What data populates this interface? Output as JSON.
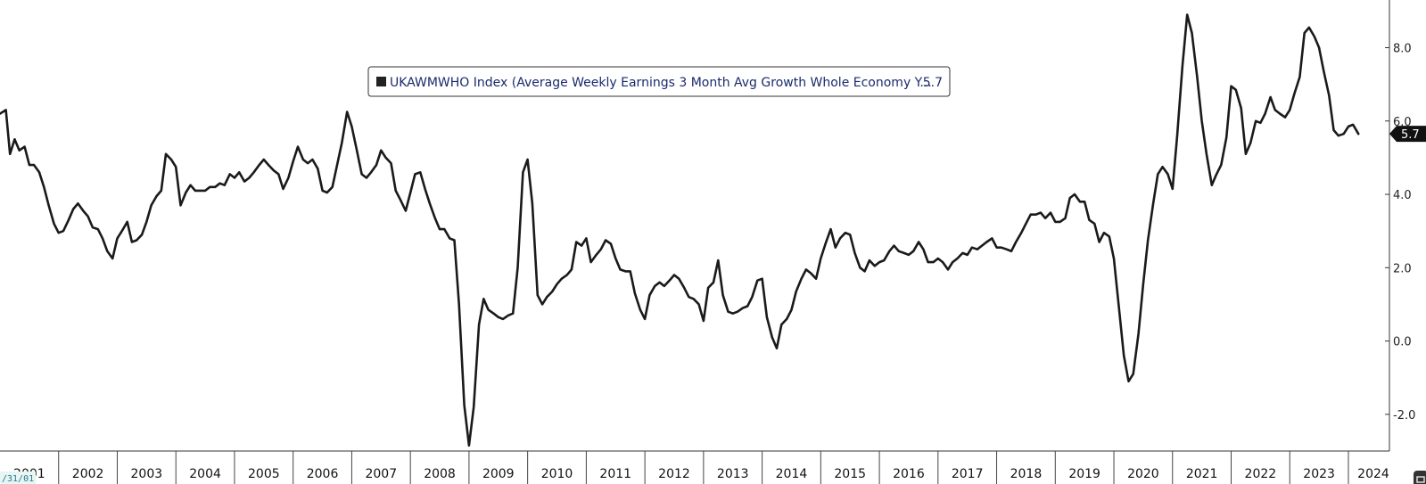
{
  "chart_data": {
    "type": "line",
    "legend": {
      "label": "UKAWMWHO Index (Average Weekly Earnings 3 Month Avg Growth Whole Economy Y...",
      "value": "5.7",
      "swatch_color": "#222222"
    },
    "last_value_label": "5.7",
    "corner_label": "/31/01",
    "y_axis": {
      "position": "right",
      "ylim": [
        -3.0,
        9.3
      ],
      "ticks": [
        {
          "value": -2.0,
          "label": "-2.0"
        },
        {
          "value": 0.0,
          "label": "0.0"
        },
        {
          "value": 2.0,
          "label": "2.0"
        },
        {
          "value": 4.0,
          "label": "4.0"
        },
        {
          "value": 6.0,
          "label": "6.0"
        },
        {
          "value": 8.0,
          "label": "8.0"
        }
      ]
    },
    "x_axis": {
      "xlim": [
        2001.0,
        2024.7
      ],
      "year_labels": [
        "2001",
        "2002",
        "2003",
        "2004",
        "2005",
        "2006",
        "2007",
        "2008",
        "2009",
        "2010",
        "2011",
        "2012",
        "2013",
        "2014",
        "2015",
        "2016",
        "2017",
        "2018",
        "2019",
        "2020",
        "2021",
        "2022",
        "2023",
        "2024"
      ]
    },
    "grid": false,
    "series": [
      {
        "color": "#1a1a1a",
        "points": [
          [
            2001.0,
            6.2
          ],
          [
            2001.1,
            6.3
          ],
          [
            2001.17,
            5.1
          ],
          [
            2001.25,
            5.5
          ],
          [
            2001.33,
            5.2
          ],
          [
            2001.42,
            5.3
          ],
          [
            2001.5,
            4.8
          ],
          [
            2001.58,
            4.8
          ],
          [
            2001.67,
            4.6
          ],
          [
            2001.75,
            4.2
          ],
          [
            2001.83,
            3.7
          ],
          [
            2001.92,
            3.2
          ],
          [
            2002.0,
            2.95
          ],
          [
            2002.08,
            3.0
          ],
          [
            2002.17,
            3.3
          ],
          [
            2002.25,
            3.6
          ],
          [
            2002.33,
            3.75
          ],
          [
            2002.42,
            3.55
          ],
          [
            2002.5,
            3.4
          ],
          [
            2002.58,
            3.1
          ],
          [
            2002.67,
            3.05
          ],
          [
            2002.75,
            2.8
          ],
          [
            2002.83,
            2.45
          ],
          [
            2002.92,
            2.25
          ],
          [
            2003.0,
            2.8
          ],
          [
            2003.08,
            3.0
          ],
          [
            2003.17,
            3.25
          ],
          [
            2003.25,
            2.7
          ],
          [
            2003.33,
            2.75
          ],
          [
            2003.42,
            2.9
          ],
          [
            2003.5,
            3.25
          ],
          [
            2003.58,
            3.7
          ],
          [
            2003.67,
            3.95
          ],
          [
            2003.75,
            4.1
          ],
          [
            2003.83,
            5.1
          ],
          [
            2003.92,
            4.95
          ],
          [
            2004.0,
            4.75
          ],
          [
            2004.08,
            3.7
          ],
          [
            2004.17,
            4.05
          ],
          [
            2004.25,
            4.25
          ],
          [
            2004.33,
            4.1
          ],
          [
            2004.42,
            4.1
          ],
          [
            2004.5,
            4.1
          ],
          [
            2004.58,
            4.2
          ],
          [
            2004.67,
            4.2
          ],
          [
            2004.75,
            4.3
          ],
          [
            2004.83,
            4.25
          ],
          [
            2004.92,
            4.55
          ],
          [
            2005.0,
            4.45
          ],
          [
            2005.08,
            4.6
          ],
          [
            2005.17,
            4.35
          ],
          [
            2005.25,
            4.45
          ],
          [
            2005.33,
            4.6
          ],
          [
            2005.42,
            4.8
          ],
          [
            2005.5,
            4.95
          ],
          [
            2005.58,
            4.8
          ],
          [
            2005.67,
            4.65
          ],
          [
            2005.75,
            4.55
          ],
          [
            2005.83,
            4.15
          ],
          [
            2005.92,
            4.45
          ],
          [
            2006.0,
            4.9
          ],
          [
            2006.08,
            5.3
          ],
          [
            2006.17,
            4.95
          ],
          [
            2006.25,
            4.85
          ],
          [
            2006.33,
            4.95
          ],
          [
            2006.42,
            4.7
          ],
          [
            2006.5,
            4.1
          ],
          [
            2006.58,
            4.05
          ],
          [
            2006.67,
            4.2
          ],
          [
            2006.75,
            4.8
          ],
          [
            2006.83,
            5.4
          ],
          [
            2006.92,
            6.25
          ],
          [
            2007.0,
            5.85
          ],
          [
            2007.08,
            5.25
          ],
          [
            2007.17,
            4.55
          ],
          [
            2007.25,
            4.45
          ],
          [
            2007.33,
            4.6
          ],
          [
            2007.42,
            4.8
          ],
          [
            2007.5,
            5.2
          ],
          [
            2007.58,
            5.0
          ],
          [
            2007.67,
            4.85
          ],
          [
            2007.75,
            4.1
          ],
          [
            2007.83,
            3.85
          ],
          [
            2007.92,
            3.55
          ],
          [
            2008.0,
            4.05
          ],
          [
            2008.08,
            4.55
          ],
          [
            2008.17,
            4.6
          ],
          [
            2008.25,
            4.15
          ],
          [
            2008.33,
            3.75
          ],
          [
            2008.42,
            3.35
          ],
          [
            2008.5,
            3.05
          ],
          [
            2008.58,
            3.05
          ],
          [
            2008.67,
            2.8
          ],
          [
            2008.75,
            2.75
          ],
          [
            2008.83,
            1.0
          ],
          [
            2008.92,
            -1.75
          ],
          [
            2009.0,
            -2.85
          ],
          [
            2009.08,
            -1.8
          ],
          [
            2009.17,
            0.45
          ],
          [
            2009.25,
            1.15
          ],
          [
            2009.33,
            0.85
          ],
          [
            2009.42,
            0.75
          ],
          [
            2009.5,
            0.65
          ],
          [
            2009.58,
            0.6
          ],
          [
            2009.67,
            0.7
          ],
          [
            2009.75,
            0.75
          ],
          [
            2009.83,
            2.0
          ],
          [
            2009.92,
            4.6
          ],
          [
            2010.0,
            4.95
          ],
          [
            2010.08,
            3.75
          ],
          [
            2010.17,
            1.25
          ],
          [
            2010.25,
            1.0
          ],
          [
            2010.33,
            1.2
          ],
          [
            2010.42,
            1.35
          ],
          [
            2010.5,
            1.55
          ],
          [
            2010.58,
            1.7
          ],
          [
            2010.67,
            1.8
          ],
          [
            2010.75,
            1.95
          ],
          [
            2010.83,
            2.7
          ],
          [
            2010.92,
            2.6
          ],
          [
            2011.0,
            2.8
          ],
          [
            2011.08,
            2.15
          ],
          [
            2011.17,
            2.35
          ],
          [
            2011.25,
            2.5
          ],
          [
            2011.33,
            2.75
          ],
          [
            2011.42,
            2.65
          ],
          [
            2011.5,
            2.25
          ],
          [
            2011.58,
            1.95
          ],
          [
            2011.67,
            1.9
          ],
          [
            2011.75,
            1.9
          ],
          [
            2011.83,
            1.3
          ],
          [
            2011.92,
            0.85
          ],
          [
            2012.0,
            0.6
          ],
          [
            2012.08,
            1.25
          ],
          [
            2012.17,
            1.5
          ],
          [
            2012.25,
            1.6
          ],
          [
            2012.33,
            1.5
          ],
          [
            2012.42,
            1.65
          ],
          [
            2012.5,
            1.8
          ],
          [
            2012.58,
            1.7
          ],
          [
            2012.67,
            1.45
          ],
          [
            2012.75,
            1.2
          ],
          [
            2012.83,
            1.15
          ],
          [
            2012.92,
            1.0
          ],
          [
            2013.0,
            0.55
          ],
          [
            2013.08,
            1.45
          ],
          [
            2013.17,
            1.6
          ],
          [
            2013.25,
            2.2
          ],
          [
            2013.33,
            1.25
          ],
          [
            2013.42,
            0.8
          ],
          [
            2013.5,
            0.75
          ],
          [
            2013.58,
            0.8
          ],
          [
            2013.67,
            0.9
          ],
          [
            2013.75,
            0.95
          ],
          [
            2013.83,
            1.2
          ],
          [
            2013.92,
            1.65
          ],
          [
            2014.0,
            1.7
          ],
          [
            2014.08,
            0.65
          ],
          [
            2014.17,
            0.1
          ],
          [
            2014.25,
            -0.2
          ],
          [
            2014.33,
            0.45
          ],
          [
            2014.42,
            0.6
          ],
          [
            2014.5,
            0.85
          ],
          [
            2014.58,
            1.35
          ],
          [
            2014.67,
            1.7
          ],
          [
            2014.75,
            1.95
          ],
          [
            2014.83,
            1.85
          ],
          [
            2014.92,
            1.7
          ],
          [
            2015.0,
            2.25
          ],
          [
            2015.08,
            2.65
          ],
          [
            2015.17,
            3.05
          ],
          [
            2015.25,
            2.55
          ],
          [
            2015.33,
            2.8
          ],
          [
            2015.42,
            2.95
          ],
          [
            2015.5,
            2.9
          ],
          [
            2015.58,
            2.4
          ],
          [
            2015.67,
            2.0
          ],
          [
            2015.75,
            1.9
          ],
          [
            2015.83,
            2.2
          ],
          [
            2015.92,
            2.05
          ],
          [
            2016.0,
            2.15
          ],
          [
            2016.08,
            2.2
          ],
          [
            2016.17,
            2.45
          ],
          [
            2016.25,
            2.6
          ],
          [
            2016.33,
            2.45
          ],
          [
            2016.42,
            2.4
          ],
          [
            2016.5,
            2.35
          ],
          [
            2016.58,
            2.45
          ],
          [
            2016.67,
            2.7
          ],
          [
            2016.75,
            2.5
          ],
          [
            2016.83,
            2.15
          ],
          [
            2016.92,
            2.15
          ],
          [
            2017.0,
            2.25
          ],
          [
            2017.08,
            2.15
          ],
          [
            2017.17,
            1.95
          ],
          [
            2017.25,
            2.15
          ],
          [
            2017.33,
            2.25
          ],
          [
            2017.42,
            2.4
          ],
          [
            2017.5,
            2.35
          ],
          [
            2017.58,
            2.55
          ],
          [
            2017.67,
            2.5
          ],
          [
            2017.75,
            2.6
          ],
          [
            2017.83,
            2.7
          ],
          [
            2017.92,
            2.8
          ],
          [
            2018.0,
            2.55
          ],
          [
            2018.08,
            2.55
          ],
          [
            2018.17,
            2.5
          ],
          [
            2018.25,
            2.45
          ],
          [
            2018.33,
            2.7
          ],
          [
            2018.42,
            2.95
          ],
          [
            2018.5,
            3.2
          ],
          [
            2018.58,
            3.45
          ],
          [
            2018.67,
            3.45
          ],
          [
            2018.75,
            3.5
          ],
          [
            2018.83,
            3.35
          ],
          [
            2018.92,
            3.5
          ],
          [
            2019.0,
            3.25
          ],
          [
            2019.08,
            3.25
          ],
          [
            2019.17,
            3.35
          ],
          [
            2019.25,
            3.9
          ],
          [
            2019.33,
            4.0
          ],
          [
            2019.42,
            3.8
          ],
          [
            2019.5,
            3.8
          ],
          [
            2019.58,
            3.3
          ],
          [
            2019.67,
            3.2
          ],
          [
            2019.75,
            2.7
          ],
          [
            2019.83,
            2.95
          ],
          [
            2019.92,
            2.85
          ],
          [
            2020.0,
            2.25
          ],
          [
            2020.08,
            1.0
          ],
          [
            2020.17,
            -0.4
          ],
          [
            2020.25,
            -1.1
          ],
          [
            2020.33,
            -0.9
          ],
          [
            2020.42,
            0.2
          ],
          [
            2020.5,
            1.55
          ],
          [
            2020.58,
            2.75
          ],
          [
            2020.67,
            3.75
          ],
          [
            2020.75,
            4.55
          ],
          [
            2020.83,
            4.75
          ],
          [
            2020.92,
            4.55
          ],
          [
            2021.0,
            4.15
          ],
          [
            2021.08,
            5.6
          ],
          [
            2021.17,
            7.5
          ],
          [
            2021.25,
            8.9
          ],
          [
            2021.33,
            8.4
          ],
          [
            2021.42,
            7.2
          ],
          [
            2021.5,
            6.0
          ],
          [
            2021.58,
            5.1
          ],
          [
            2021.67,
            4.25
          ],
          [
            2021.75,
            4.55
          ],
          [
            2021.83,
            4.8
          ],
          [
            2021.92,
            5.55
          ],
          [
            2022.0,
            6.95
          ],
          [
            2022.08,
            6.85
          ],
          [
            2022.17,
            6.35
          ],
          [
            2022.25,
            5.1
          ],
          [
            2022.33,
            5.4
          ],
          [
            2022.42,
            6.0
          ],
          [
            2022.5,
            5.95
          ],
          [
            2022.58,
            6.2
          ],
          [
            2022.67,
            6.65
          ],
          [
            2022.75,
            6.3
          ],
          [
            2022.83,
            6.2
          ],
          [
            2022.92,
            6.1
          ],
          [
            2023.0,
            6.3
          ],
          [
            2023.08,
            6.75
          ],
          [
            2023.17,
            7.2
          ],
          [
            2023.25,
            8.4
          ],
          [
            2023.33,
            8.55
          ],
          [
            2023.42,
            8.3
          ],
          [
            2023.5,
            8.0
          ],
          [
            2023.58,
            7.35
          ],
          [
            2023.67,
            6.7
          ],
          [
            2023.75,
            5.75
          ],
          [
            2023.83,
            5.6
          ],
          [
            2023.92,
            5.65
          ],
          [
            2024.0,
            5.85
          ],
          [
            2024.08,
            5.9
          ],
          [
            2024.17,
            5.65
          ]
        ]
      }
    ]
  }
}
